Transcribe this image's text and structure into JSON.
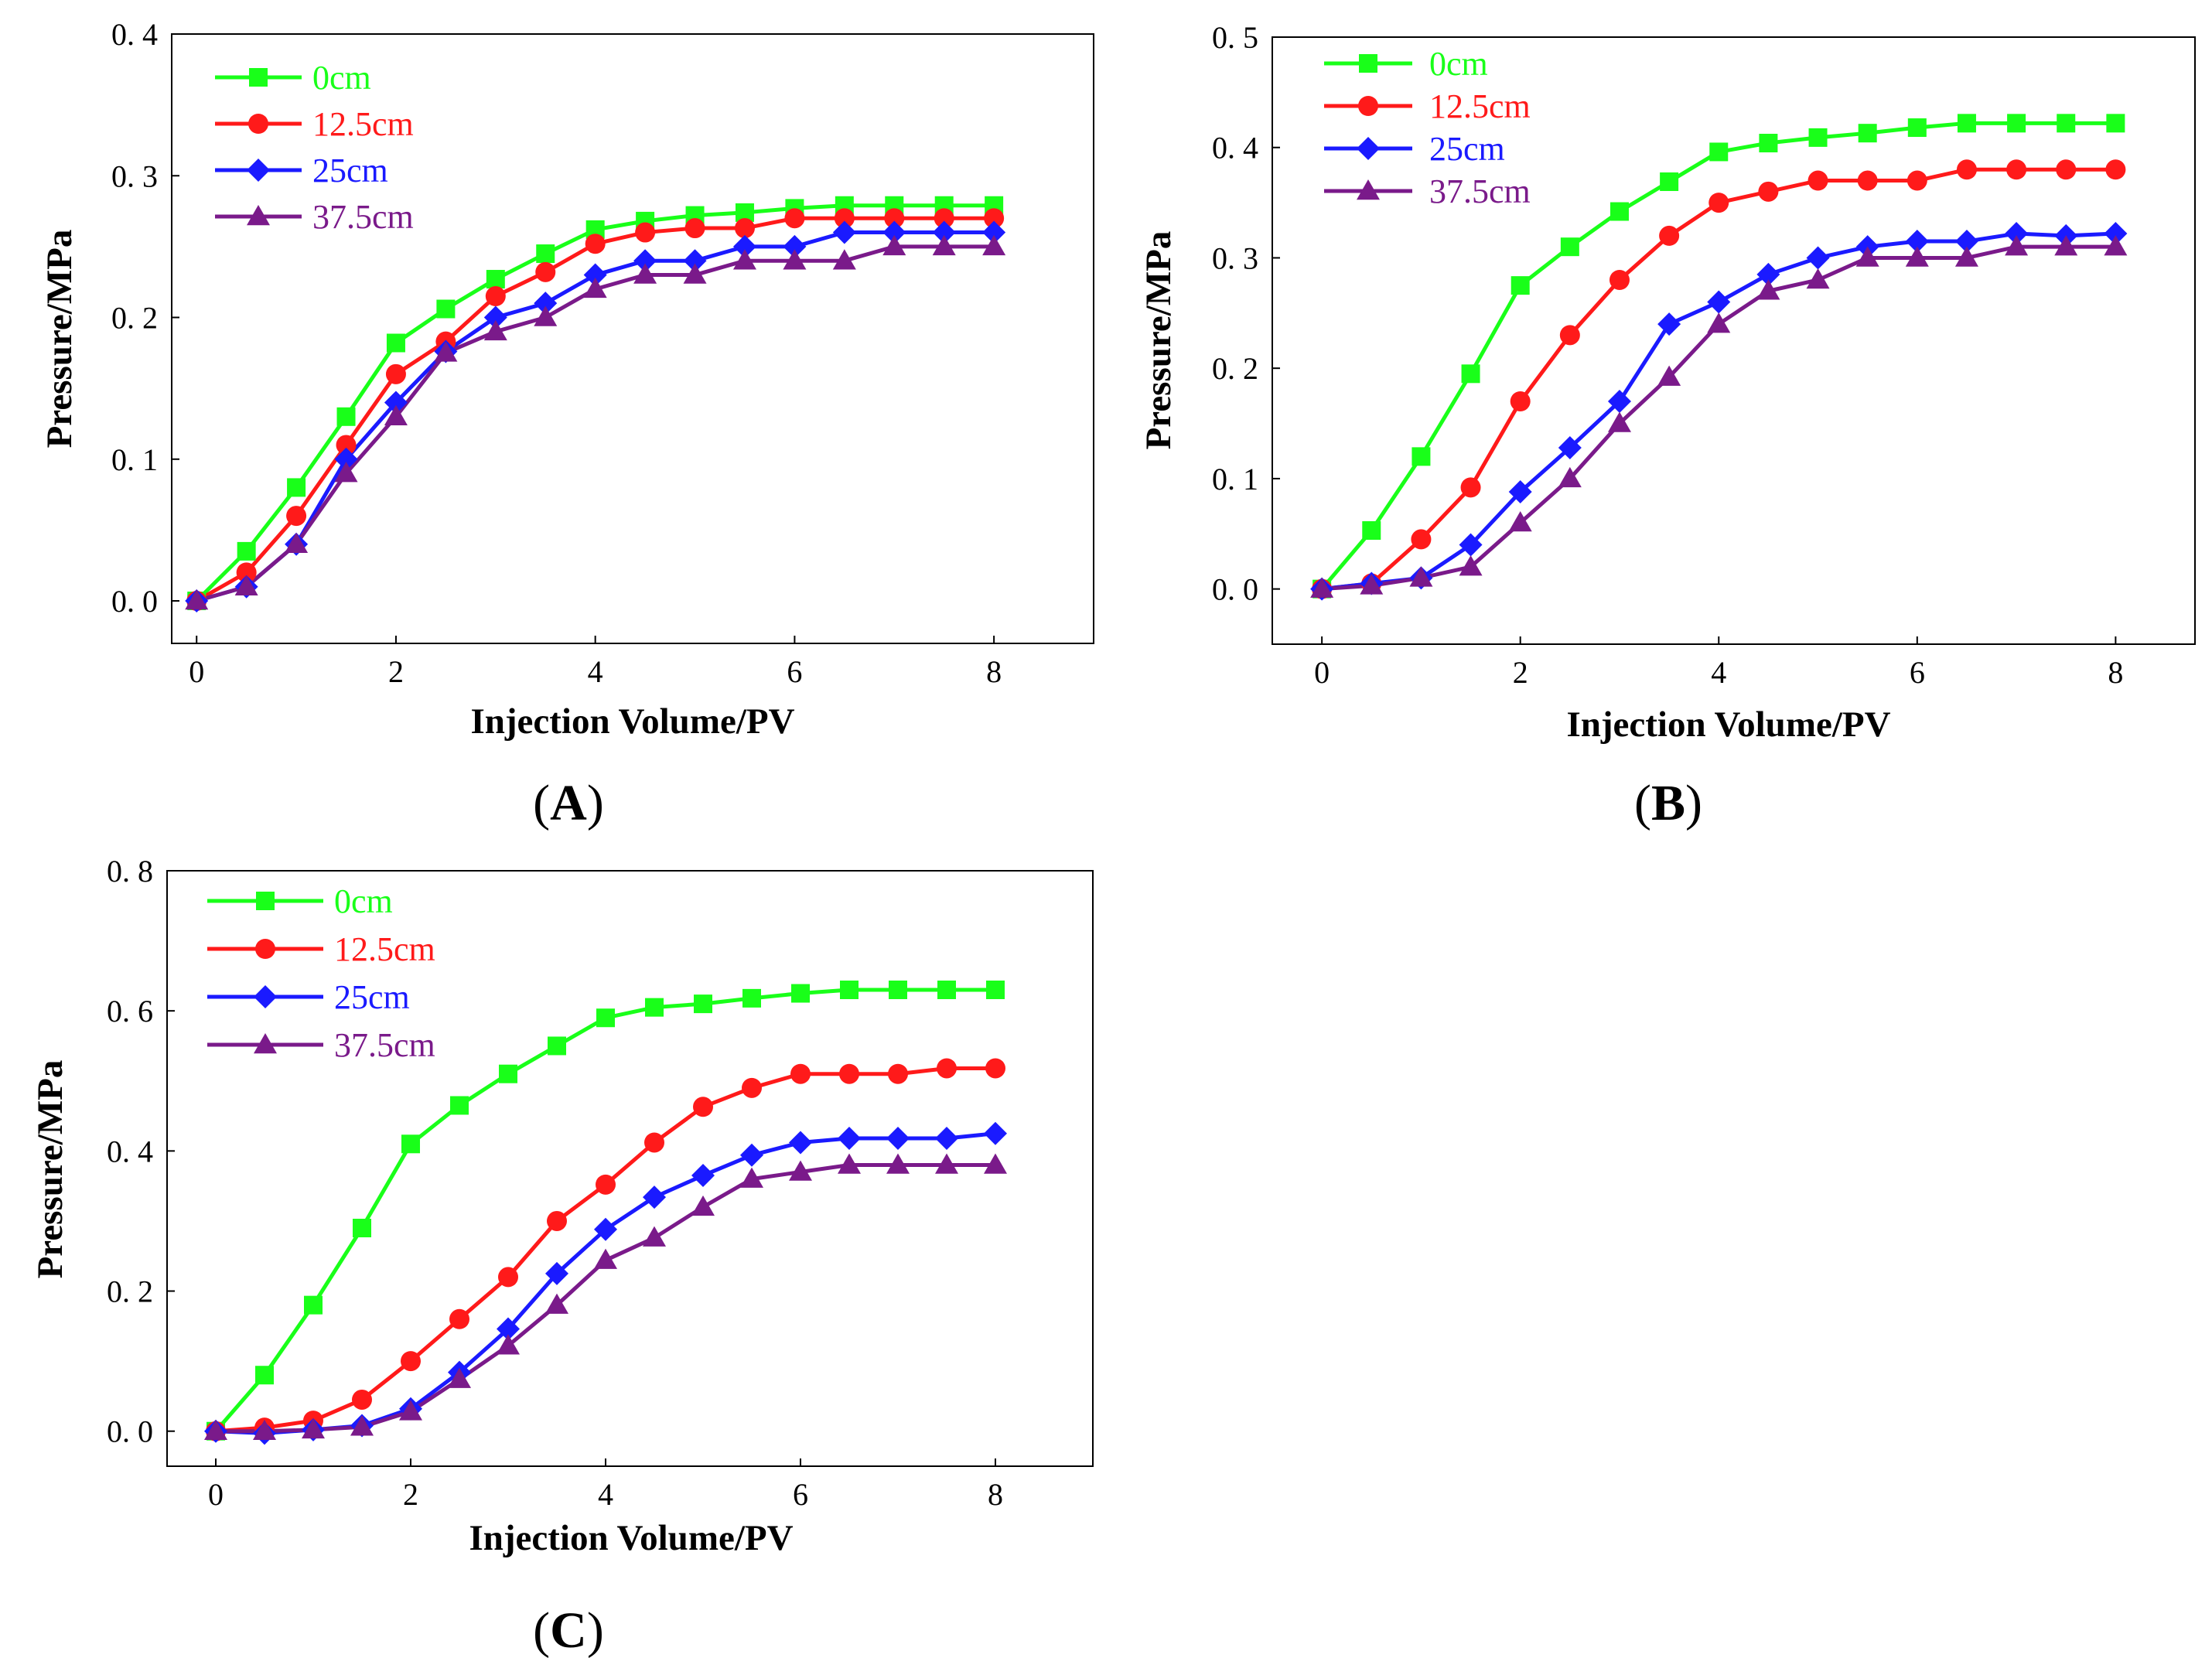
{
  "chart_data": [
    {
      "panel": "A",
      "type": "line",
      "xlabel": "Injection Volume/PV",
      "ylabel": "Pressure/MPa",
      "xlim": [
        -0.25,
        9.0
      ],
      "ylim": [
        -0.03,
        0.4
      ],
      "xticks": [
        0,
        2,
        4,
        6,
        8
      ],
      "xtick_labels": [
        "0",
        "2",
        "4",
        "6",
        "8"
      ],
      "yticks": [
        0.0,
        0.1,
        0.2,
        0.3,
        0.4
      ],
      "ytick_labels": [
        "0. 0",
        "0. 1",
        "0. 2",
        "0. 3",
        "0. 4"
      ],
      "legend_position": "top-left",
      "x": [
        0,
        0.5,
        1,
        1.5,
        2,
        2.5,
        3,
        3.5,
        4,
        4.5,
        5,
        5.5,
        6,
        6.5,
        7,
        7.5,
        8
      ],
      "series": [
        {
          "name": "0cm",
          "color": "#19ff19",
          "marker": "square",
          "values": [
            0.0,
            0.035,
            0.08,
            0.13,
            0.182,
            0.206,
            0.227,
            0.245,
            0.262,
            0.268,
            0.272,
            0.274,
            0.277,
            0.279,
            0.279,
            0.279,
            0.279
          ]
        },
        {
          "name": "12.5cm",
          "color": "#ff1a1a",
          "marker": "circle",
          "values": [
            0.0,
            0.02,
            0.06,
            0.11,
            0.16,
            0.183,
            0.215,
            0.232,
            0.252,
            0.26,
            0.263,
            0.263,
            0.27,
            0.27,
            0.27,
            0.27,
            0.27
          ]
        },
        {
          "name": "25cm",
          "color": "#1a1aff",
          "marker": "diamond",
          "values": [
            0.0,
            0.01,
            0.04,
            0.1,
            0.14,
            0.176,
            0.2,
            0.21,
            0.23,
            0.24,
            0.24,
            0.25,
            0.25,
            0.26,
            0.26,
            0.26,
            0.26
          ]
        },
        {
          "name": "37.5cm",
          "color": "#7a1a8a",
          "marker": "triangle",
          "values": [
            0.0,
            0.01,
            0.04,
            0.09,
            0.13,
            0.175,
            0.19,
            0.2,
            0.22,
            0.23,
            0.23,
            0.24,
            0.24,
            0.24,
            0.25,
            0.25,
            0.25
          ]
        }
      ]
    },
    {
      "panel": "B",
      "type": "line",
      "xlabel": "Injection Volume/PV",
      "ylabel": "Pressure/MPa",
      "xlim": [
        -0.5,
        8.8
      ],
      "ylim": [
        -0.05,
        0.5
      ],
      "xticks": [
        0,
        2,
        4,
        6,
        8
      ],
      "xtick_labels": [
        "0",
        "2",
        "4",
        "6",
        "8"
      ],
      "yticks": [
        0.0,
        0.1,
        0.2,
        0.3,
        0.4,
        0.5
      ],
      "ytick_labels": [
        "0. 0",
        "0. 1",
        "0. 2",
        "0. 3",
        "0. 4",
        "0. 5"
      ],
      "legend_position": "top-left",
      "x": [
        0,
        0.5,
        1,
        1.5,
        2,
        2.5,
        3,
        3.5,
        4,
        4.5,
        5,
        5.5,
        6,
        6.5,
        7,
        7.5,
        8
      ],
      "series": [
        {
          "name": "0cm",
          "color": "#19ff19",
          "marker": "square",
          "values": [
            0.0,
            0.053,
            0.12,
            0.195,
            0.275,
            0.31,
            0.342,
            0.369,
            0.396,
            0.404,
            0.409,
            0.413,
            0.418,
            0.422,
            0.422,
            0.422,
            0.422
          ]
        },
        {
          "name": "12.5cm",
          "color": "#ff1a1a",
          "marker": "circle",
          "values": [
            0.0,
            0.005,
            0.045,
            0.092,
            0.17,
            0.23,
            0.28,
            0.32,
            0.35,
            0.36,
            0.37,
            0.37,
            0.37,
            0.38,
            0.38,
            0.38,
            0.38
          ]
        },
        {
          "name": "25cm",
          "color": "#1a1aff",
          "marker": "diamond",
          "values": [
            0.0,
            0.005,
            0.01,
            0.04,
            0.088,
            0.128,
            0.17,
            0.24,
            0.26,
            0.285,
            0.3,
            0.31,
            0.315,
            0.315,
            0.322,
            0.32,
            0.322
          ]
        },
        {
          "name": "37.5cm",
          "color": "#7a1a8a",
          "marker": "triangle",
          "values": [
            0.0,
            0.003,
            0.01,
            0.02,
            0.06,
            0.1,
            0.15,
            0.192,
            0.24,
            0.27,
            0.28,
            0.3,
            0.3,
            0.3,
            0.31,
            0.31,
            0.31
          ]
        }
      ]
    },
    {
      "panel": "C",
      "type": "line",
      "xlabel": "Injection Volume/PV",
      "ylabel": "Pressure/MPa",
      "xlim": [
        -0.5,
        9.0
      ],
      "ylim": [
        -0.05,
        0.8
      ],
      "xticks": [
        0,
        2,
        4,
        6,
        8
      ],
      "xtick_labels": [
        "0",
        "2",
        "4",
        "6",
        "8"
      ],
      "yticks": [
        0.0,
        0.2,
        0.4,
        0.6,
        0.8
      ],
      "ytick_labels": [
        "0. 0",
        "0. 2",
        "0. 4",
        "0. 6",
        "0. 8"
      ],
      "legend_position": "top-left",
      "x": [
        0,
        0.5,
        1,
        1.5,
        2,
        2.5,
        3,
        3.5,
        4,
        4.5,
        5,
        5.5,
        6,
        6.5,
        7,
        7.5,
        8
      ],
      "series": [
        {
          "name": "0cm",
          "color": "#19ff19",
          "marker": "square",
          "values": [
            0.0,
            0.08,
            0.18,
            0.29,
            0.41,
            0.465,
            0.51,
            0.55,
            0.59,
            0.605,
            0.61,
            0.618,
            0.625,
            0.63,
            0.63,
            0.63,
            0.63
          ]
        },
        {
          "name": "12.5cm",
          "color": "#ff1a1a",
          "marker": "circle",
          "values": [
            0.0,
            0.005,
            0.015,
            0.045,
            0.1,
            0.16,
            0.22,
            0.3,
            0.352,
            0.412,
            0.463,
            0.49,
            0.51,
            0.51,
            0.51,
            0.518,
            0.518
          ]
        },
        {
          "name": "25cm",
          "color": "#1a1aff",
          "marker": "diamond",
          "values": [
            0.0,
            -0.003,
            0.002,
            0.008,
            0.032,
            0.084,
            0.146,
            0.225,
            0.288,
            0.334,
            0.365,
            0.394,
            0.412,
            0.418,
            0.418,
            0.418,
            0.425
          ]
        },
        {
          "name": "37.5cm",
          "color": "#7a1a8a",
          "marker": "triangle",
          "values": [
            0.0,
            0.0,
            0.002,
            0.006,
            0.028,
            0.074,
            0.122,
            0.18,
            0.244,
            0.276,
            0.32,
            0.36,
            0.37,
            0.38,
            0.38,
            0.38,
            0.38
          ]
        }
      ]
    }
  ]
}
